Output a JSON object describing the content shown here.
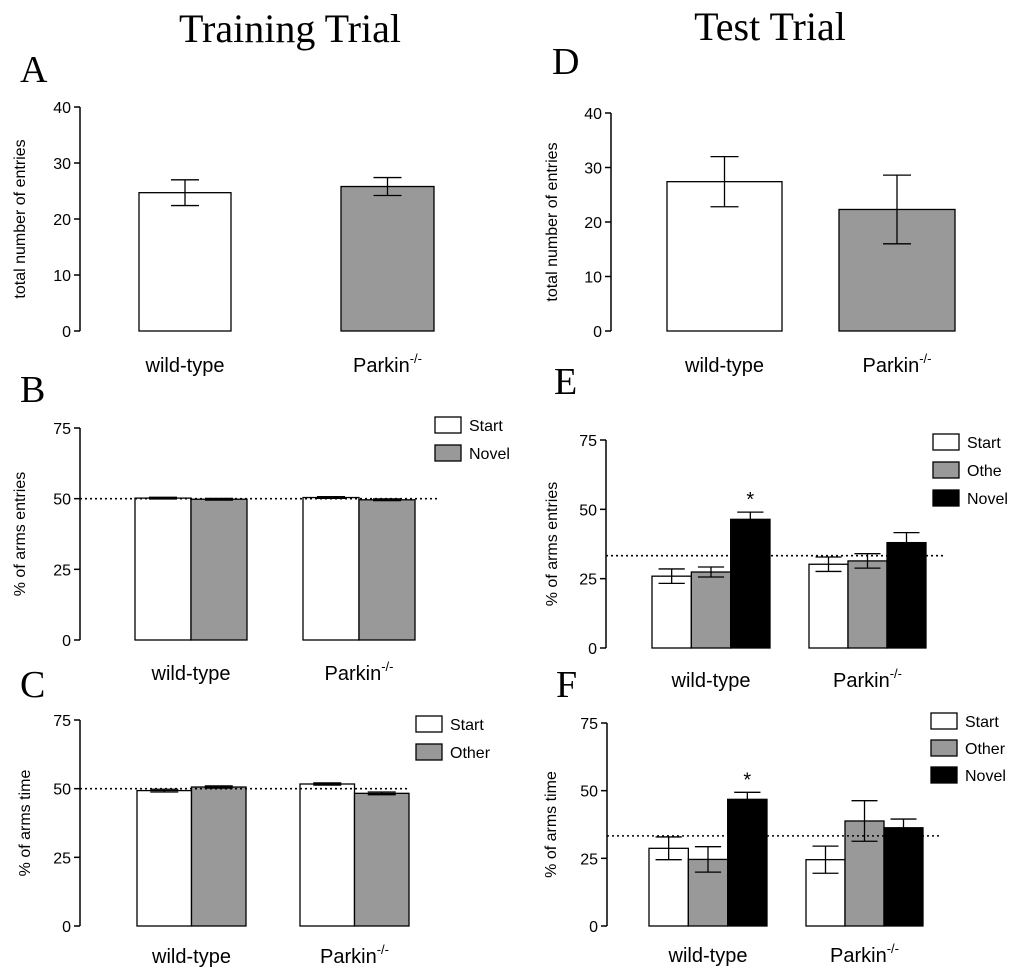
{
  "figure": {
    "left_title": "Training Trial",
    "right_title": "Test Trial"
  },
  "colors": {
    "start": "#ffffff",
    "other": "#999999",
    "novel_grey": "#999999",
    "novel_black": "#000000",
    "stroke": "#000000"
  },
  "chart_data": [
    {
      "id": "A",
      "type": "bar",
      "panel_label": "A",
      "ylabel": "total number of entries",
      "ylim": [
        0,
        40
      ],
      "yticks": [
        0,
        10,
        20,
        30,
        40
      ],
      "categories": [
        {
          "name": "wild-type",
          "sup": ""
        },
        {
          "name": "Parkin",
          "sup": "-/-"
        }
      ],
      "series": [
        {
          "values": [
            24.7,
            25.8
          ],
          "errors": [
            2.3,
            1.6
          ],
          "colors": [
            "#ffffff",
            "#999999"
          ]
        }
      ],
      "legend": [],
      "reference_line": null,
      "annotations": []
    },
    {
      "id": "B",
      "type": "bar",
      "panel_label": "B",
      "ylabel": "% of arms entries",
      "ylim": [
        0,
        75
      ],
      "yticks": [
        0,
        25,
        50,
        75
      ],
      "categories": [
        {
          "name": "wild-type",
          "sup": ""
        },
        {
          "name": "Parkin",
          "sup": "-/-"
        }
      ],
      "series": [
        {
          "name": "Start",
          "values": [
            50.2,
            50.4
          ],
          "errors": [
            0.3,
            0.3
          ],
          "color": "#ffffff"
        },
        {
          "name": "Novel",
          "values": [
            49.8,
            49.6
          ],
          "errors": [
            0.3,
            0.3
          ],
          "color": "#999999"
        }
      ],
      "legend": [
        "Start",
        "Novel"
      ],
      "reference_line": 50,
      "annotations": []
    },
    {
      "id": "C",
      "type": "bar",
      "panel_label": "C",
      "ylabel": "% of arms time",
      "ylim": [
        0,
        75
      ],
      "yticks": [
        0,
        25,
        50,
        75
      ],
      "categories": [
        {
          "name": "wild-type",
          "sup": ""
        },
        {
          "name": "Parkin",
          "sup": "-/-"
        }
      ],
      "series": [
        {
          "name": "Start",
          "values": [
            49.3,
            51.7
          ],
          "errors": [
            0.5,
            0.4
          ],
          "color": "#ffffff"
        },
        {
          "name": "Other",
          "values": [
            50.6,
            48.3
          ],
          "errors": [
            0.4,
            0.5
          ],
          "color": "#999999"
        }
      ],
      "legend": [
        "Start",
        "Other"
      ],
      "reference_line": 50,
      "annotations": []
    },
    {
      "id": "D",
      "type": "bar",
      "panel_label": "D",
      "ylabel": "total number of entries",
      "ylim": [
        0,
        40
      ],
      "yticks": [
        0,
        10,
        20,
        30,
        40
      ],
      "categories": [
        {
          "name": "wild-type",
          "sup": ""
        },
        {
          "name": "Parkin",
          "sup": "-/-"
        }
      ],
      "series": [
        {
          "values": [
            27.4,
            22.3
          ],
          "errors": [
            4.6,
            6.3
          ],
          "colors": [
            "#ffffff",
            "#999999"
          ]
        }
      ],
      "legend": [],
      "reference_line": null,
      "annotations": []
    },
    {
      "id": "E",
      "type": "bar",
      "panel_label": "E",
      "ylabel": "% of arms entries",
      "ylim": [
        0,
        75
      ],
      "yticks": [
        0,
        25,
        50,
        75
      ],
      "categories": [
        {
          "name": "wild-type",
          "sup": ""
        },
        {
          "name": "Parkin",
          "sup": "-/-"
        }
      ],
      "series": [
        {
          "name": "Start",
          "values": [
            25.9,
            30.2
          ],
          "errors": [
            2.6,
            2.6
          ],
          "color": "#ffffff"
        },
        {
          "name": "Othe",
          "values": [
            27.4,
            31.4
          ],
          "errors": [
            1.8,
            2.6
          ],
          "color": "#999999"
        },
        {
          "name": "Novel",
          "values": [
            46.4,
            38.0
          ],
          "errors": [
            2.6,
            3.6
          ],
          "color": "#000000"
        }
      ],
      "legend": [
        "Start",
        "Othe",
        "Novel"
      ],
      "reference_line": 33.3,
      "annotations": [
        {
          "text": "*",
          "category": 0,
          "series": 2
        }
      ]
    },
    {
      "id": "F",
      "type": "bar",
      "panel_label": "F",
      "ylabel": "% of arms time",
      "ylim": [
        0,
        75
      ],
      "yticks": [
        0,
        25,
        50,
        75
      ],
      "categories": [
        {
          "name": "wild-type",
          "sup": ""
        },
        {
          "name": "Parkin",
          "sup": "-/-"
        }
      ],
      "series": [
        {
          "name": "Start",
          "values": [
            28.7,
            24.5
          ],
          "errors": [
            4.2,
            5.0
          ],
          "color": "#ffffff"
        },
        {
          "name": "Other",
          "values": [
            24.6,
            38.8
          ],
          "errors": [
            4.7,
            7.5
          ],
          "color": "#999999"
        },
        {
          "name": "Novel",
          "values": [
            46.8,
            36.3
          ],
          "errors": [
            2.6,
            3.2
          ],
          "color": "#000000"
        }
      ],
      "legend": [
        "Start",
        "Other",
        "Novel"
      ],
      "reference_line": 33.3,
      "annotations": [
        {
          "text": "*",
          "category": 0,
          "series": 2
        }
      ]
    }
  ]
}
